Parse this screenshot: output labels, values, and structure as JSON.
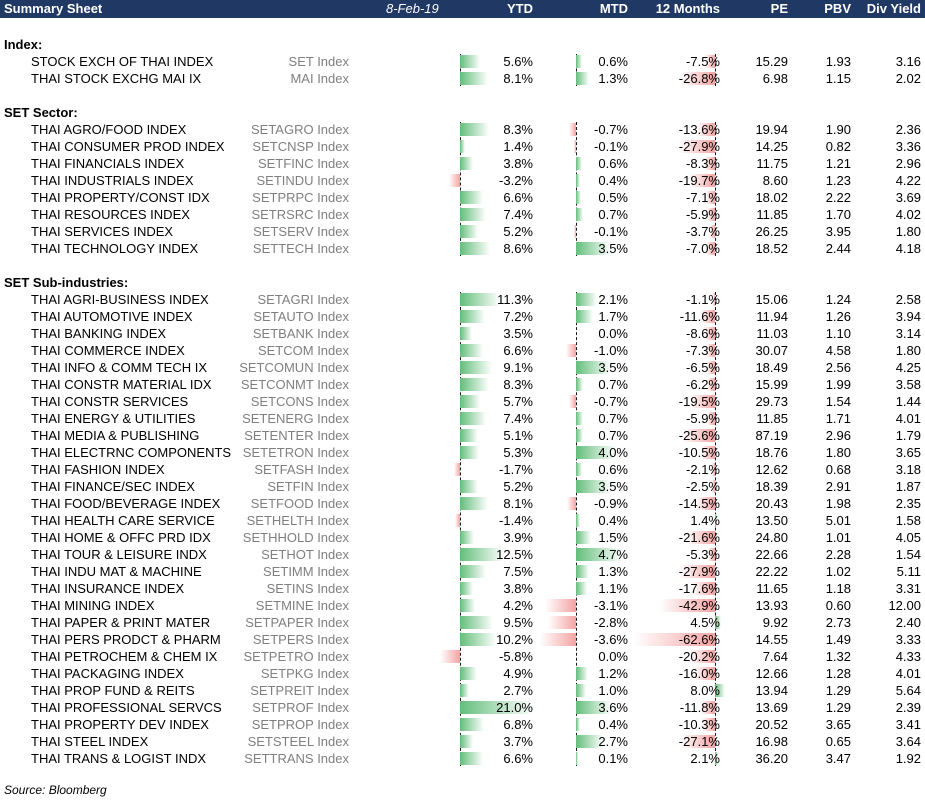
{
  "header": {
    "title": "Summary Sheet",
    "date": "8-Feb-19",
    "ytd": "YTD",
    "mtd": "MTD",
    "m12": "12 Months",
    "pe": "PE",
    "pbv": "PBV",
    "dy": "Div Yield"
  },
  "colors": {
    "header_bg": "#1f3864",
    "positive_bar": "#63be7b",
    "negative_bar": "#f4a3a3",
    "ticker_text": "#7f7f7f"
  },
  "sections": [
    {
      "title": "Index:",
      "rows": [
        {
          "name": "STOCK EXCH OF THAI INDEX",
          "ticker": "SET Index",
          "ytd": "5.6%",
          "mtd": "0.6%",
          "m12": "-7.5%",
          "pe": "15.29",
          "pbv": "1.93",
          "dy": "3.16"
        },
        {
          "name": "THAI STOCK EXCHG MAI IX",
          "ticker": "MAI Index",
          "ytd": "8.1%",
          "mtd": "1.3%",
          "m12": "-26.8%",
          "pe": "6.98",
          "pbv": "1.15",
          "dy": "2.02"
        }
      ]
    },
    {
      "title": "SET Sector:",
      "rows": [
        {
          "name": "THAI AGRO/FOOD INDEX",
          "ticker": "SETAGRO Index",
          "ytd": "8.3%",
          "mtd": "-0.7%",
          "m12": "-13.6%",
          "pe": "19.94",
          "pbv": "1.90",
          "dy": "2.36"
        },
        {
          "name": "THAI CONSUMER PROD INDEX",
          "ticker": "SETCNSP Index",
          "ytd": "1.4%",
          "mtd": "-0.1%",
          "m12": "-27.9%",
          "pe": "14.25",
          "pbv": "0.82",
          "dy": "3.36"
        },
        {
          "name": "THAI FINANCIALS INDEX",
          "ticker": "SETFINC Index",
          "ytd": "3.8%",
          "mtd": "0.6%",
          "m12": "-8.3%",
          "pe": "11.75",
          "pbv": "1.21",
          "dy": "2.96"
        },
        {
          "name": "THAI INDUSTRIALS INDEX",
          "ticker": "SETINDU Index",
          "ytd": "-3.2%",
          "mtd": "0.4%",
          "m12": "-19.7%",
          "pe": "8.60",
          "pbv": "1.23",
          "dy": "4.22"
        },
        {
          "name": "THAI PROPERTY/CONST IDX",
          "ticker": "SETPRPC Index",
          "ytd": "6.6%",
          "mtd": "0.5%",
          "m12": "-7.1%",
          "pe": "18.02",
          "pbv": "2.22",
          "dy": "3.69"
        },
        {
          "name": "THAI RESOURCES INDEX",
          "ticker": "SETRSRC Index",
          "ytd": "7.4%",
          "mtd": "0.7%",
          "m12": "-5.9%",
          "pe": "11.85",
          "pbv": "1.70",
          "dy": "4.02"
        },
        {
          "name": "THAI SERVICES INDEX",
          "ticker": "SETSERV Index",
          "ytd": "5.2%",
          "mtd": "-0.1%",
          "m12": "-3.7%",
          "pe": "26.25",
          "pbv": "3.95",
          "dy": "1.80"
        },
        {
          "name": "THAI TECHNOLOGY INDEX",
          "ticker": "SETTECH Index",
          "ytd": "8.6%",
          "mtd": "3.5%",
          "m12": "-7.0%",
          "pe": "18.52",
          "pbv": "2.44",
          "dy": "4.18"
        }
      ]
    },
    {
      "title": "SET Sub-industries:",
      "rows": [
        {
          "name": "THAI AGRI-BUSINESS INDEX",
          "ticker": "SETAGRI Index",
          "ytd": "11.3%",
          "mtd": "2.1%",
          "m12": "-1.1%",
          "pe": "15.06",
          "pbv": "1.24",
          "dy": "2.58"
        },
        {
          "name": "THAI AUTOMOTIVE INDEX",
          "ticker": "SETAUTO Index",
          "ytd": "7.2%",
          "mtd": "1.7%",
          "m12": "-11.6%",
          "pe": "11.94",
          "pbv": "1.26",
          "dy": "3.94"
        },
        {
          "name": "THAI BANKING INDEX",
          "ticker": "SETBANK Index",
          "ytd": "3.5%",
          "mtd": "0.0%",
          "m12": "-8.6%",
          "pe": "11.03",
          "pbv": "1.10",
          "dy": "3.14"
        },
        {
          "name": "THAI COMMERCE INDEX",
          "ticker": "SETCOM Index",
          "ytd": "6.6%",
          "mtd": "-1.0%",
          "m12": "-7.3%",
          "pe": "30.07",
          "pbv": "4.58",
          "dy": "1.80"
        },
        {
          "name": "THAI INFO & COMM TECH IX",
          "ticker": "SETCOMUN Index",
          "ytd": "9.1%",
          "mtd": "3.5%",
          "m12": "-6.5%",
          "pe": "18.49",
          "pbv": "2.56",
          "dy": "4.25"
        },
        {
          "name": "THAI CONSTR MATERIAL IDX",
          "ticker": "SETCONMT Index",
          "ytd": "8.3%",
          "mtd": "0.7%",
          "m12": "-6.2%",
          "pe": "15.99",
          "pbv": "1.99",
          "dy": "3.58"
        },
        {
          "name": "THAI CONSTR SERVICES",
          "ticker": "SETCONS Index",
          "ytd": "5.7%",
          "mtd": "-0.7%",
          "m12": "-19.5%",
          "pe": "29.73",
          "pbv": "1.54",
          "dy": "1.44"
        },
        {
          "name": "THAI ENERGY & UTILITIES",
          "ticker": "SETENERG Index",
          "ytd": "7.4%",
          "mtd": "0.7%",
          "m12": "-5.9%",
          "pe": "11.85",
          "pbv": "1.71",
          "dy": "4.01"
        },
        {
          "name": "THAI MEDIA & PUBLISHING",
          "ticker": "SETENTER Index",
          "ytd": "5.1%",
          "mtd": "0.7%",
          "m12": "-25.6%",
          "pe": "87.19",
          "pbv": "2.96",
          "dy": "1.79"
        },
        {
          "name": "THAI ELECTRNC COMPONENTS",
          "ticker": "SETETRON Index",
          "ytd": "5.3%",
          "mtd": "4.0%",
          "m12": "-10.5%",
          "pe": "18.76",
          "pbv": "1.80",
          "dy": "3.65"
        },
        {
          "name": "THAI FASHION INDEX",
          "ticker": "SETFASH Index",
          "ytd": "-1.7%",
          "mtd": "0.6%",
          "m12": "-2.1%",
          "pe": "12.62",
          "pbv": "0.68",
          "dy": "3.18"
        },
        {
          "name": "THAI FINANCE/SEC INDEX",
          "ticker": "SETFIN Index",
          "ytd": "5.2%",
          "mtd": "3.5%",
          "m12": "-2.5%",
          "pe": "18.39",
          "pbv": "2.91",
          "dy": "1.87"
        },
        {
          "name": "THAI FOOD/BEVERAGE INDEX",
          "ticker": "SETFOOD Index",
          "ytd": "8.1%",
          "mtd": "-0.9%",
          "m12": "-14.5%",
          "pe": "20.43",
          "pbv": "1.98",
          "dy": "2.35"
        },
        {
          "name": "THAI HEALTH CARE SERVICE",
          "ticker": "SETHELTH Index",
          "ytd": "-1.4%",
          "mtd": "0.4%",
          "m12": "1.4%",
          "pe": "13.50",
          "pbv": "5.01",
          "dy": "1.58"
        },
        {
          "name": "THAI HOME & OFFC PRD IDX",
          "ticker": "SETHHOLD Index",
          "ytd": "3.9%",
          "mtd": "1.5%",
          "m12": "-21.6%",
          "pe": "24.80",
          "pbv": "1.01",
          "dy": "4.05"
        },
        {
          "name": "THAI TOUR & LEISURE INDX",
          "ticker": "SETHOT Index",
          "ytd": "12.5%",
          "mtd": "4.7%",
          "m12": "-5.3%",
          "pe": "22.66",
          "pbv": "2.28",
          "dy": "1.54"
        },
        {
          "name": "THAI INDU MAT & MACHINE",
          "ticker": "SETIMM Index",
          "ytd": "7.5%",
          "mtd": "1.3%",
          "m12": "-27.9%",
          "pe": "22.22",
          "pbv": "1.02",
          "dy": "5.11"
        },
        {
          "name": "THAI INSURANCE INDEX",
          "ticker": "SETINS Index",
          "ytd": "3.8%",
          "mtd": "1.1%",
          "m12": "-17.6%",
          "pe": "11.65",
          "pbv": "1.18",
          "dy": "3.31"
        },
        {
          "name": "THAI MINING INDEX",
          "ticker": "SETMINE Index",
          "ytd": "4.2%",
          "mtd": "-3.1%",
          "m12": "-42.9%",
          "pe": "13.93",
          "pbv": "0.60",
          "dy": "12.00"
        },
        {
          "name": "THAI PAPER & PRINT MATER",
          "ticker": "SETPAPER Index",
          "ytd": "9.5%",
          "mtd": "-2.8%",
          "m12": "4.5%",
          "pe": "9.92",
          "pbv": "2.73",
          "dy": "2.40"
        },
        {
          "name": "THAI PERS PRODCT & PHARM",
          "ticker": "SETPERS Index",
          "ytd": "10.2%",
          "mtd": "-3.6%",
          "m12": "-62.6%",
          "pe": "14.55",
          "pbv": "1.49",
          "dy": "3.33"
        },
        {
          "name": "THAI PETROCHEM & CHEM IX",
          "ticker": "SETPETRO Index",
          "ytd": "-5.8%",
          "mtd": "0.0%",
          "m12": "-20.2%",
          "pe": "7.64",
          "pbv": "1.32",
          "dy": "4.33"
        },
        {
          "name": "THAI PACKAGING INDEX",
          "ticker": "SETPKG Index",
          "ytd": "4.9%",
          "mtd": "1.2%",
          "m12": "-16.0%",
          "pe": "12.66",
          "pbv": "1.28",
          "dy": "4.01"
        },
        {
          "name": "THAI PROP FUND & REITS",
          "ticker": "SETPREIT Index",
          "ytd": "2.7%",
          "mtd": "1.0%",
          "m12": "8.0%",
          "pe": "13.94",
          "pbv": "1.29",
          "dy": "5.64"
        },
        {
          "name": "THAI PROFESSIONAL SERVCS",
          "ticker": "SETPROF Index",
          "ytd": "21.0%",
          "mtd": "3.6%",
          "m12": "-11.8%",
          "pe": "13.69",
          "pbv": "1.29",
          "dy": "2.39"
        },
        {
          "name": "THAI PROPERTY DEV INDEX",
          "ticker": "SETPROP Index",
          "ytd": "6.8%",
          "mtd": "0.4%",
          "m12": "-10.3%",
          "pe": "20.52",
          "pbv": "3.65",
          "dy": "3.41"
        },
        {
          "name": "THAI STEEL INDEX",
          "ticker": "SETSTEEL Index",
          "ytd": "3.7%",
          "mtd": "2.7%",
          "m12": "-27.1%",
          "pe": "16.98",
          "pbv": "0.65",
          "dy": "3.64"
        },
        {
          "name": "THAI TRANS & LOGIST INDX",
          "ticker": "SETTRANS Index",
          "ytd": "6.6%",
          "mtd": "0.1%",
          "m12": "2.1%",
          "pe": "36.20",
          "pbv": "3.47",
          "dy": "1.92"
        }
      ]
    }
  ],
  "footer": {
    "source": "Source: Bloomberg"
  }
}
